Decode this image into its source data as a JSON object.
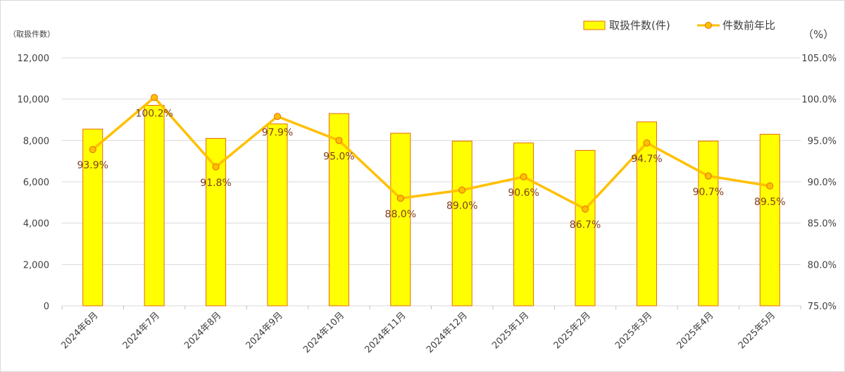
{
  "chart_data": {
    "type": "bar+line",
    "categories": [
      "2024年6月",
      "2024年7月",
      "2024年8月",
      "2024年9月",
      "2024年10月",
      "2024年11月",
      "2024年12月",
      "2025年1月",
      "2025年2月",
      "2025年3月",
      "2025年4月",
      "2025年5月"
    ],
    "series": [
      {
        "name": "取扱件数(件)",
        "type": "bar",
        "axis": "left",
        "values": [
          8550,
          9700,
          8100,
          8800,
          9300,
          8350,
          7970,
          7880,
          7520,
          8900,
          7970,
          8300
        ]
      },
      {
        "name": "件数前年比",
        "type": "line",
        "axis": "right",
        "values": [
          93.9,
          100.2,
          91.8,
          97.9,
          95.0,
          88.0,
          89.0,
          90.6,
          86.7,
          94.7,
          90.7,
          89.5
        ],
        "labels": [
          "93.9%",
          "100.2%",
          "91.8%",
          "97.9%",
          "95.0%",
          "88.0%",
          "89.0%",
          "90.6%",
          "86.7%",
          "94.7%",
          "90.7%",
          "89.5%"
        ]
      }
    ],
    "y_left": {
      "unit_label": "（取扱件数）",
      "ylim": [
        0,
        12000
      ],
      "ticks": [
        0,
        2000,
        4000,
        6000,
        8000,
        10000,
        12000
      ],
      "tick_labels": [
        "0",
        "2,000",
        "4,000",
        "6,000",
        "8,000",
        "10,000",
        "12,000"
      ]
    },
    "y_right": {
      "unit_label": "（%）",
      "ylim": [
        75,
        105
      ],
      "ticks": [
        75,
        80,
        85,
        90,
        95,
        100,
        105
      ],
      "tick_labels": [
        "75.0%",
        "80.0%",
        "85.0%",
        "90.0%",
        "95.0%",
        "100.0%",
        "105.0%"
      ]
    },
    "grid": true,
    "legend_position": "top-right",
    "colors": {
      "bar_fill": "#ffff00",
      "bar_stroke": "#e46c0a",
      "line": "#ffc000",
      "marker_fill": "#ffc000",
      "marker_stroke": "#e46c0a",
      "label": "#7f3f1f"
    }
  }
}
